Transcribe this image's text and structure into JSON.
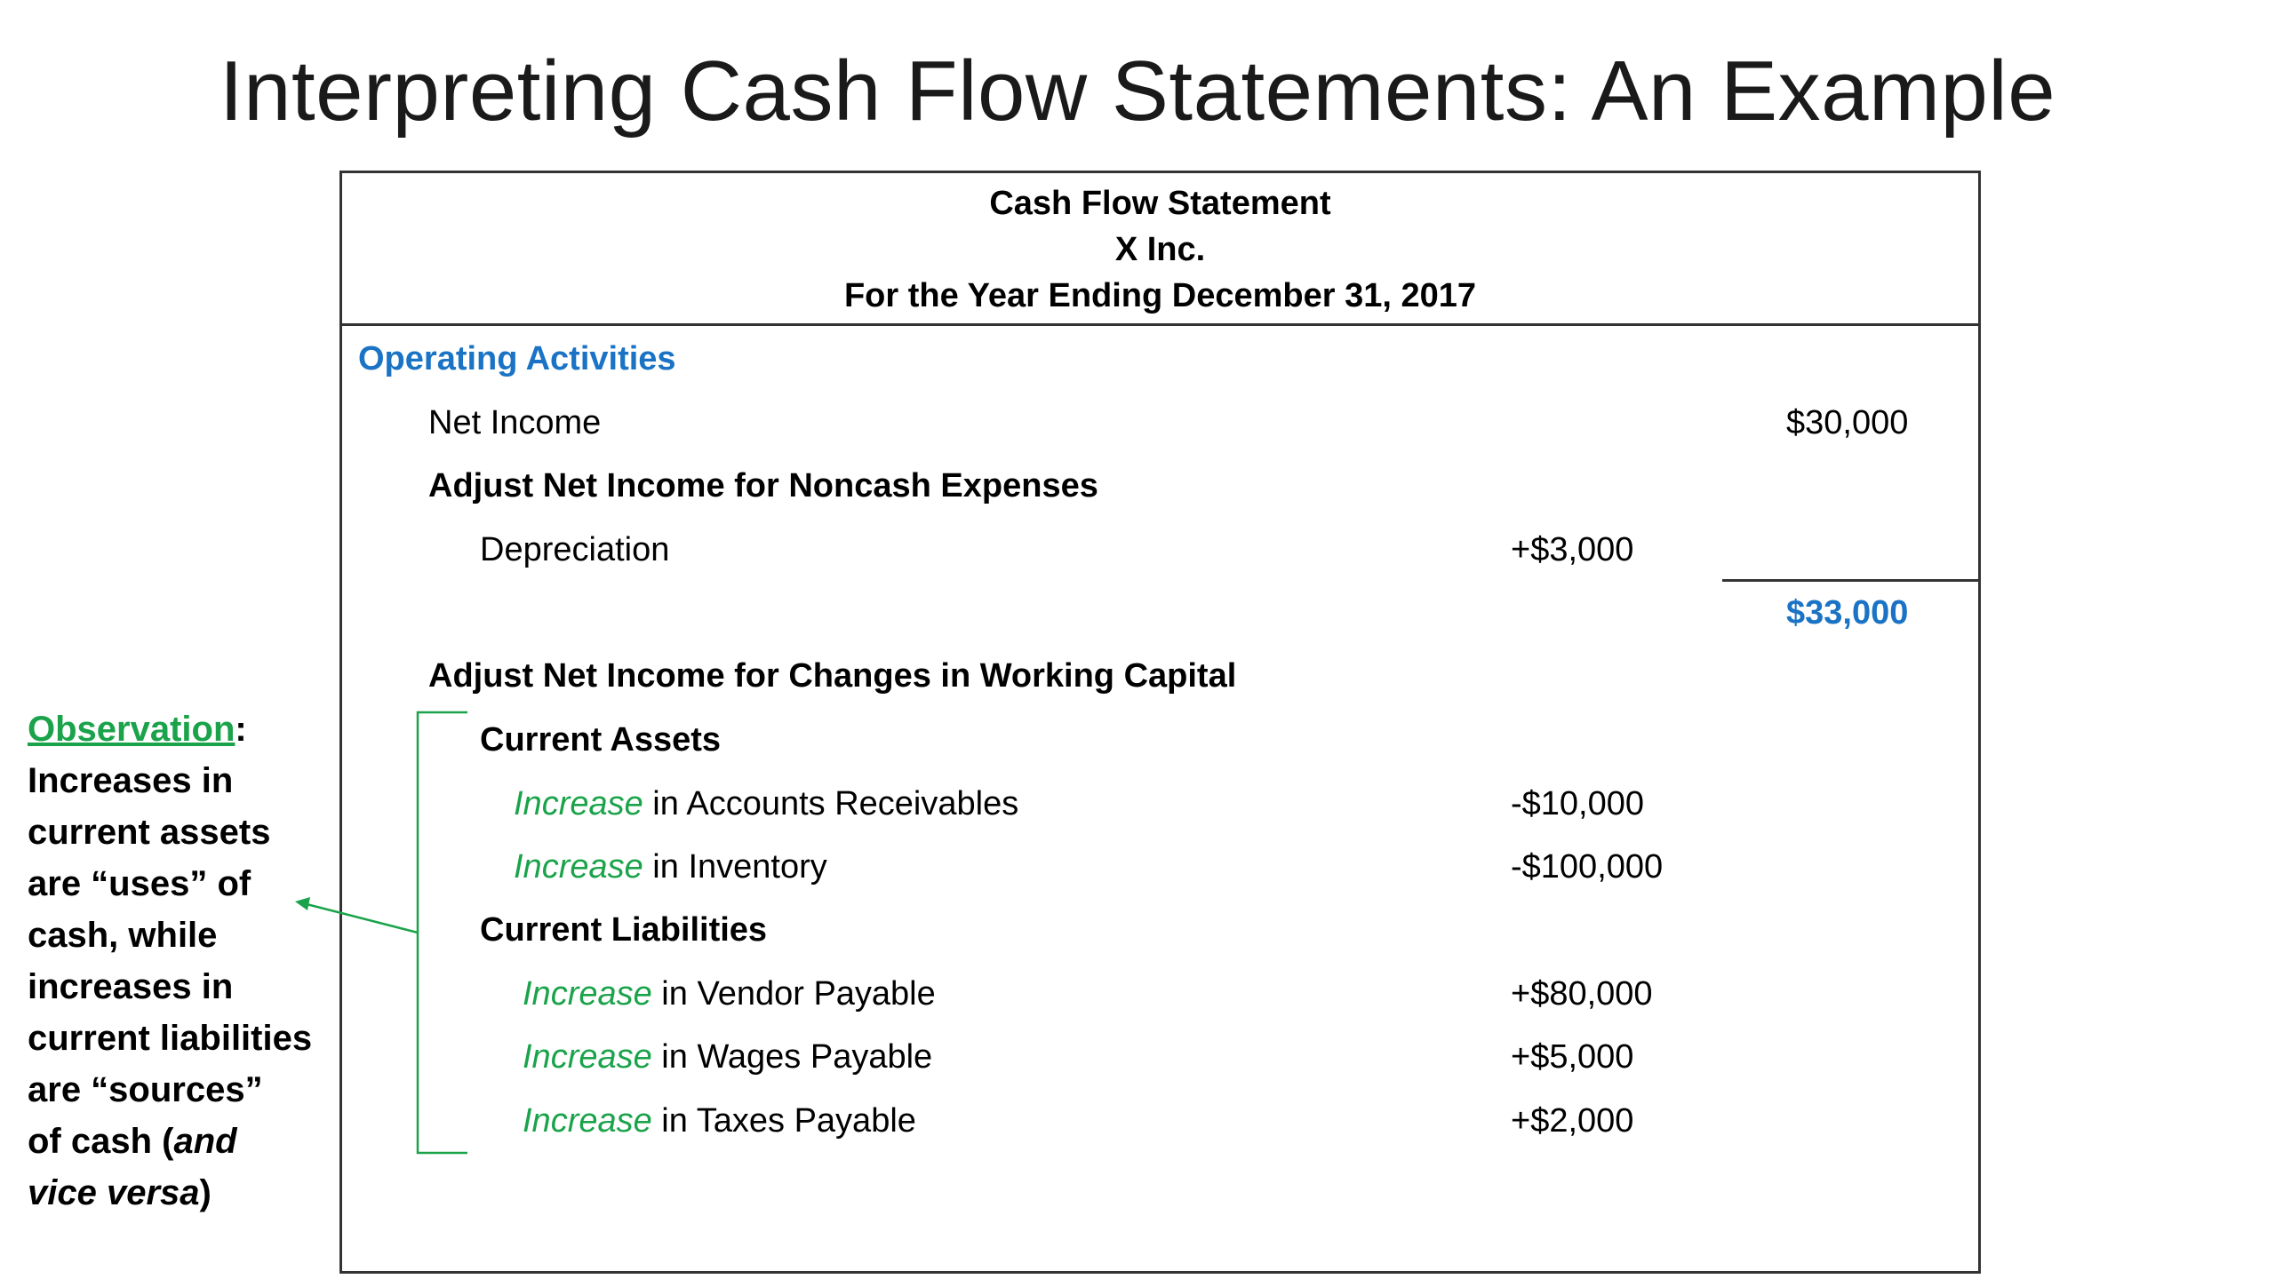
{
  "slide": {
    "title": "Interpreting Cash Flow Statements: An Example"
  },
  "statement": {
    "header": [
      "Cash Flow Statement",
      "X Inc.",
      "For the Year Ending December 31, 2017"
    ],
    "section_title": "Operating Activities",
    "net_income": {
      "label": "Net Income",
      "amount": "$30,000"
    },
    "noncash": {
      "heading": "Adjust Net Income for Noncash Expenses",
      "depreciation": {
        "label": "Depreciation",
        "amount": "+$3,000"
      },
      "subtotal": "$33,000"
    },
    "working_capital": {
      "heading": "Adjust Net Income for Changes in Working Capital",
      "current_assets_heading": "Current Assets",
      "current_assets": [
        {
          "prefix": "Increase",
          "label": " in Accounts Receivables",
          "amount": "-$10,000"
        },
        {
          "prefix": "Increase",
          "label": " in Inventory",
          "amount": "-$100,000"
        }
      ],
      "current_liabilities_heading": "Current Liabilities",
      "current_liabilities": [
        {
          "prefix": "Increase",
          "label": " in Vendor Payable",
          "amount": "+$80,000"
        },
        {
          "prefix": "Increase",
          "label": " in Wages Payable",
          "amount": "+$5,000"
        },
        {
          "prefix": "Increase",
          "label": " in Taxes Payable",
          "amount": "+$2,000"
        }
      ]
    }
  },
  "observation": {
    "label": "Observation",
    "colon": ":",
    "lines": [
      "Increases in",
      "current assets",
      "are “uses” of",
      "cash, while",
      "increases in",
      "current liabilities",
      "are “sources”"
    ],
    "line8_start": "of cash (",
    "line8_italic": "and",
    "line9_italic": "vice versa",
    "line9_end": ")"
  },
  "colors": {
    "section_blue": "#1a73c4",
    "highlight_green": "#1aa34a"
  }
}
